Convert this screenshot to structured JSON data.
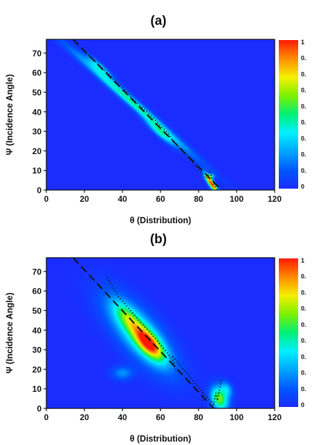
{
  "chart_data": [
    {
      "type": "heatmap",
      "panel_label": "(a)",
      "xlabel": "θ (Distribution)",
      "ylabel": "Ψ (Incidence Angle)",
      "xlim": [
        0,
        120
      ],
      "ylim": [
        0,
        77
      ],
      "xticks": [
        "0",
        "20",
        "40",
        "60",
        "80",
        "100",
        "120"
      ],
      "yticks": [
        "0",
        "10",
        "20",
        "30",
        "40",
        "50",
        "60",
        "70"
      ],
      "colorbar": {
        "colormap": "jet",
        "tick_labels": [
          "1",
          "0.",
          "0.",
          "0.",
          "0.",
          "0.",
          "0.",
          "0.",
          "0.",
          "0"
        ]
      },
      "blobs": [
        {
          "cx": 45,
          "cy": 45,
          "sa": 28,
          "sb": 1.6,
          "angle_deg": -40,
          "peak": 0.48
        },
        {
          "cx": 28,
          "cy": 63,
          "sa": 6,
          "sb": 1.3,
          "angle_deg": -40,
          "peak": 0.33
        },
        {
          "cx": 60,
          "cy": 29,
          "sa": 7,
          "sb": 1.4,
          "angle_deg": -40,
          "peak": 0.35
        },
        {
          "cx": 87,
          "cy": 3,
          "sa": 4.2,
          "sb": 1.0,
          "angle_deg": -55,
          "peak": 1.0
        },
        {
          "cx": 86,
          "cy": 7,
          "sa": 1.5,
          "sb": 0.9,
          "angle_deg": 0,
          "peak": 0.45
        }
      ],
      "lines": [
        {
          "style": "dashed",
          "x": [
            14,
            92
          ],
          "y": [
            77,
            0
          ]
        },
        {
          "style": "dotted",
          "x": [
            22,
            34,
            46,
            56,
            64,
            66,
            84,
            86,
            87,
            88,
            90
          ],
          "y": [
            69,
            58,
            46,
            37,
            29,
            26,
            6,
            9,
            6,
            3,
            0
          ]
        }
      ]
    },
    {
      "type": "heatmap",
      "panel_label": "(b)",
      "xlabel": "θ (Distribution)",
      "ylabel": "Ψ (Incidence Angle)",
      "xlim": [
        0,
        120
      ],
      "ylim": [
        0,
        77
      ],
      "xticks": [
        "0",
        "20",
        "40",
        "60",
        "80",
        "100",
        "120"
      ],
      "yticks": [
        "0",
        "10",
        "20",
        "30",
        "40",
        "50",
        "60",
        "70"
      ],
      "colorbar": {
        "colormap": "jet",
        "tick_labels": [
          "1",
          "0.",
          "0.",
          "0.",
          "0.",
          "0.",
          "0.",
          "0.",
          "0.",
          "0"
        ]
      },
      "blobs": [
        {
          "cx": 49,
          "cy": 38,
          "sa": 17,
          "sb": 6.5,
          "angle_deg": -48,
          "peak": 0.45
        },
        {
          "cx": 54,
          "cy": 33,
          "sa": 7,
          "sb": 3.2,
          "angle_deg": -48,
          "peak": 0.72
        },
        {
          "cx": 43,
          "cy": 46,
          "sa": 7,
          "sb": 3.0,
          "angle_deg": -48,
          "peak": 0.32
        },
        {
          "cx": 40,
          "cy": 18,
          "sa": 4,
          "sb": 2.5,
          "angle_deg": 0,
          "peak": 0.22
        },
        {
          "cx": 91,
          "cy": 5,
          "sa": 4.5,
          "sb": 3.0,
          "angle_deg": -70,
          "peak": 0.62
        },
        {
          "cx": 95,
          "cy": 10,
          "sa": 3,
          "sb": 2.0,
          "angle_deg": -60,
          "peak": 0.25
        }
      ],
      "lines": [
        {
          "style": "dashed",
          "x": [
            14,
            88
          ],
          "y": [
            77,
            0
          ]
        },
        {
          "style": "dotted",
          "x": [
            32,
            38,
            46,
            56,
            64,
            68,
            66,
            84,
            88,
            89,
            90,
            91,
            92
          ],
          "y": [
            67,
            57,
            48,
            37,
            28,
            20,
            27,
            6,
            2,
            8,
            4,
            10,
            15
          ]
        }
      ]
    }
  ]
}
